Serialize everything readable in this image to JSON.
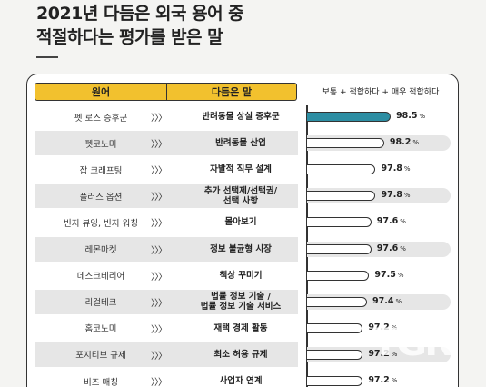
{
  "title_line1": "2021년 다듬은 외국 용어 중",
  "title_line2": "적절하다는 평가를 받은 말",
  "header": {
    "term": "원어",
    "alt": "다듬은 말",
    "score": "보통 + 적합하다 + 매우 적합하다"
  },
  "arrow_glyph": "〉〉〉",
  "percent_sign": "%",
  "watermark": "TGN",
  "colors": {
    "accent": "#f2c12e",
    "bar": "#2d8ea3",
    "shade": "#e6e6e6"
  },
  "chart_data": {
    "type": "bar",
    "orientation": "horizontal",
    "title": "2021년 다듬은 외국 용어 중 적절하다는 평가를 받은 말",
    "categories": [
      "펫 로스 증후군",
      "펫코노미",
      "잡 크래프팅",
      "플러스 옵션",
      "빈지 뷰잉, 빈지 워칭",
      "레몬마켓",
      "데스크테리어",
      "리걸테크",
      "홈코노미",
      "포지티브 규제",
      "비즈 매칭"
    ],
    "alternatives": [
      "반려동물 상실 증후군",
      "반려동물 산업",
      "자발적 직무 설계",
      "추가 선택제/선택권/\n선택 사항",
      "몰아보기",
      "정보 불균형 시장",
      "책상 꾸미기",
      "법률 정보 기술 /\n법률 정보 기술 서비스",
      "재택 경제 활동",
      "최소 허용 규제",
      "사업자 연계"
    ],
    "series": [
      {
        "name": "보통 + 적합하다 + 매우 적합하다",
        "values": [
          98.5,
          98.2,
          97.8,
          97.8,
          97.6,
          97.6,
          97.5,
          97.4,
          97.2,
          97.2,
          97.2
        ]
      }
    ],
    "highlight_index": 0
  }
}
